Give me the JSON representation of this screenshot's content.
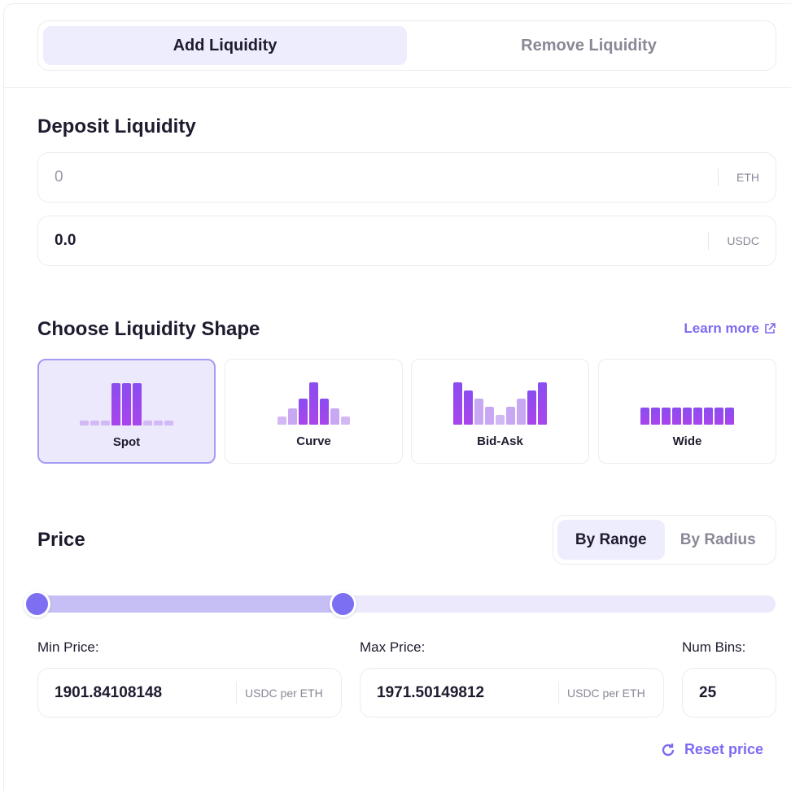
{
  "tabs": [
    {
      "label": "Add Liquidity",
      "active": true
    },
    {
      "label": "Remove Liquidity",
      "active": false
    }
  ],
  "deposit": {
    "title": "Deposit Liquidity",
    "token_a": {
      "value": "0",
      "unit": "ETH"
    },
    "token_b": {
      "value": "0.0",
      "unit": "USDC"
    }
  },
  "shape": {
    "title": "Choose Liquidity Shape",
    "learn_more": "Learn more",
    "options": [
      {
        "label": "Spot",
        "active": true
      },
      {
        "label": "Curve"
      },
      {
        "label": "Bid-Ask"
      },
      {
        "label": "Wide"
      }
    ]
  },
  "price": {
    "title": "Price",
    "modes": [
      {
        "label": "By Range",
        "active": true
      },
      {
        "label": "By Radius"
      }
    ],
    "slider": {
      "min_fraction": 0,
      "max_fraction": 0.414
    },
    "min_label": "Min Price:",
    "min_value": "1901.84108148",
    "min_unit": "USDC per ETH",
    "max_label": "Max Price:",
    "max_value": "1971.50149812",
    "max_unit": "USDC per ETH",
    "bins_label": "Num Bins:",
    "bins_value": "25",
    "reset": "Reset price"
  },
  "colors": {
    "accent": "#7c6ff2",
    "bar_strong": "#9b45ef",
    "bar_light": "#d2b8f5"
  }
}
